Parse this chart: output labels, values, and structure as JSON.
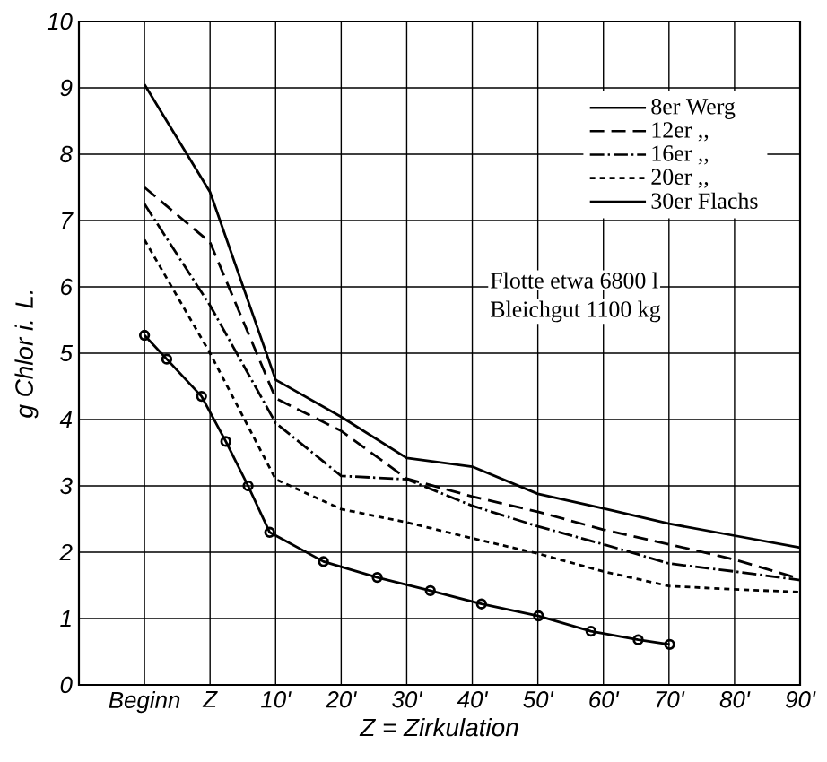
{
  "chart_data": {
    "type": "line",
    "xlabel": "Z = Zirkulation",
    "ylabel": "g Chlor i. L.",
    "xlim": [
      -20,
      90
    ],
    "ylim": [
      0,
      10
    ],
    "xticks": [
      {
        "value": -10,
        "label": "Beginn"
      },
      {
        "value": 0,
        "label": "Z"
      },
      {
        "value": 10,
        "label": "10'"
      },
      {
        "value": 20,
        "label": "20'"
      },
      {
        "value": 30,
        "label": "30'"
      },
      {
        "value": 40,
        "label": "40'"
      },
      {
        "value": 50,
        "label": "50'"
      },
      {
        "value": 60,
        "label": "60'"
      },
      {
        "value": 70,
        "label": "70'"
      },
      {
        "value": 80,
        "label": "80'"
      },
      {
        "value": 90,
        "label": "90'"
      }
    ],
    "yticks": [
      0,
      1,
      2,
      3,
      4,
      5,
      6,
      7,
      8,
      9,
      10
    ],
    "grid": true,
    "legend": "top right",
    "x": [
      -10,
      0,
      10,
      20,
      30,
      40,
      50,
      60,
      70,
      80,
      90
    ],
    "series": [
      {
        "name": "8er Werg",
        "color": "#000000",
        "line_style": "solid",
        "marker": "none",
        "values": [
          9.05,
          7.43,
          4.6,
          4.04,
          3.42,
          3.29,
          2.88,
          2.66,
          2.43,
          2.25,
          2.07
        ]
      },
      {
        "name": "12er ,,",
        "color": "#000000",
        "line_style": "dashed",
        "marker": "none",
        "values": [
          7.5,
          6.67,
          4.32,
          3.83,
          3.11,
          2.84,
          2.61,
          2.34,
          2.12,
          1.89,
          1.6
        ]
      },
      {
        "name": "16er ,,",
        "color": "#000000",
        "line_style": "dashdot",
        "marker": "none",
        "values": [
          7.25,
          5.72,
          3.95,
          3.15,
          3.1,
          2.7,
          2.39,
          2.12,
          1.83,
          1.71,
          1.58
        ]
      },
      {
        "name": "20er ,,",
        "color": "#000000",
        "line_style": "dotted",
        "marker": "none",
        "values": [
          6.71,
          5.0,
          3.1,
          2.65,
          2.45,
          2.21,
          1.98,
          1.71,
          1.49,
          1.44,
          1.4
        ]
      },
      {
        "name": "30er Flachs",
        "color": "#000000",
        "line_style": "solid",
        "marker": "circle",
        "x": [
          -10,
          -6.6,
          -1.3,
          2.4,
          5.8,
          9.1,
          17.3,
          25.5,
          33.6,
          41.4,
          50.1,
          58.1,
          65.3,
          70.1
        ],
        "values": [
          5.27,
          4.91,
          4.35,
          3.67,
          3.0,
          2.3,
          1.86,
          1.62,
          1.42,
          1.22,
          1.04,
          0.81,
          0.68,
          0.61
        ]
      }
    ],
    "annotations": [
      "Flotte etwa 6800 l",
      "Bleichgut 1100 kg"
    ]
  }
}
